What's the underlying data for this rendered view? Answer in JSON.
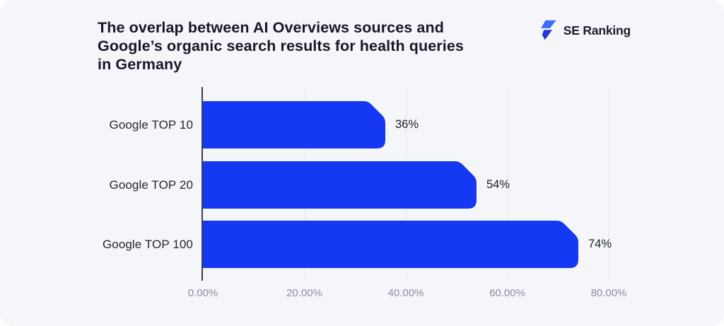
{
  "header": {
    "title": "The overlap between AI Overviews sources and Google’s organic search results for health queries in Germany",
    "logo": {
      "text": "SE Ranking",
      "icon": "se-ranking-bolt-icon",
      "icon_color_top": "#3f6bf6",
      "icon_color_bottom": "#2438db"
    }
  },
  "chart_data": {
    "type": "bar",
    "orientation": "horizontal",
    "title": "The overlap between AI Overviews sources and Google’s organic search results for health queries in Germany",
    "categories": [
      "Google TOP 10",
      "Google TOP 20",
      "Google TOP 100"
    ],
    "values": [
      36,
      54,
      74
    ],
    "value_labels": [
      "36%",
      "54%",
      "74%"
    ],
    "x_tick_values": [
      0,
      20,
      40,
      60,
      80
    ],
    "x_tick_labels": [
      "0.00%",
      "20.00%",
      "40.00%",
      "60.00%",
      "80.00%"
    ],
    "xlim": [
      0,
      80
    ],
    "grid": "vertical-light",
    "legend": "none",
    "bar_color": "#1539f3",
    "axis_color": "#3c3f48",
    "background_color": "#f5f6fa"
  }
}
